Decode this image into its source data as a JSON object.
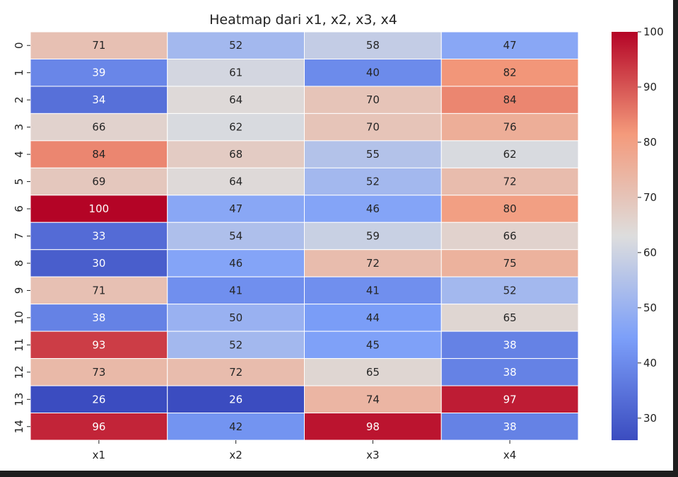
{
  "chart_data": {
    "type": "heatmap",
    "title": "Heatmap dari x1, x2, x3, x4",
    "xlabel": "",
    "ylabel": "",
    "columns": [
      "x1",
      "x2",
      "x3",
      "x4"
    ],
    "rows": [
      "0",
      "1",
      "2",
      "3",
      "4",
      "5",
      "6",
      "7",
      "8",
      "9",
      "10",
      "11",
      "12",
      "13",
      "14"
    ],
    "values": [
      [
        71,
        52,
        58,
        47
      ],
      [
        39,
        61,
        40,
        82
      ],
      [
        34,
        64,
        70,
        84
      ],
      [
        66,
        62,
        70,
        76
      ],
      [
        84,
        68,
        55,
        62
      ],
      [
        69,
        64,
        52,
        72
      ],
      [
        100,
        47,
        46,
        80
      ],
      [
        33,
        54,
        59,
        66
      ],
      [
        30,
        46,
        72,
        75
      ],
      [
        71,
        41,
        41,
        52
      ],
      [
        38,
        50,
        44,
        65
      ],
      [
        93,
        52,
        45,
        38
      ],
      [
        73,
        72,
        65,
        38
      ],
      [
        26,
        26,
        74,
        97
      ],
      [
        96,
        42,
        98,
        38
      ]
    ],
    "colormap": "coolwarm",
    "vmin": 26,
    "vmax": 100,
    "colorbar": {
      "ticks": [
        30,
        40,
        50,
        60,
        70,
        80,
        90,
        100
      ]
    },
    "annotations": true,
    "grid": false
  }
}
